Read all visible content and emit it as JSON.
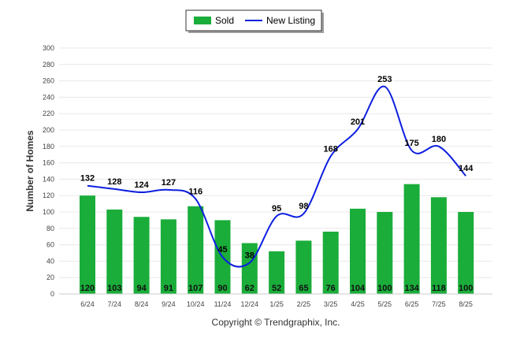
{
  "chart_data": {
    "type": "bar",
    "categories": [
      "6/24",
      "7/24",
      "8/24",
      "9/24",
      "10/24",
      "11/24",
      "12/24",
      "1/25",
      "2/25",
      "3/25",
      "4/25",
      "5/25",
      "6/25",
      "7/25",
      "8/25"
    ],
    "series": [
      {
        "name": "Sold",
        "type": "bar",
        "color": "#1aad3a",
        "values": [
          120,
          103,
          94,
          91,
          107,
          90,
          62,
          52,
          65,
          76,
          104,
          100,
          134,
          118,
          100
        ]
      },
      {
        "name": "New Listing",
        "type": "line",
        "color": "#0d1ee0",
        "values": [
          132,
          128,
          124,
          127,
          116,
          45,
          38,
          95,
          98,
          168,
          201,
          253,
          175,
          180,
          144
        ]
      }
    ],
    "ylabel": "Number of Homes",
    "xlabel": "",
    "ylim": [
      0,
      300
    ],
    "yticks": [
      0,
      20,
      40,
      60,
      80,
      100,
      120,
      140,
      160,
      180,
      200,
      220,
      240,
      260,
      280,
      300
    ],
    "grid": true,
    "legend": "top-center",
    "copyright": "Copyright © Trendgraphix, Inc."
  }
}
